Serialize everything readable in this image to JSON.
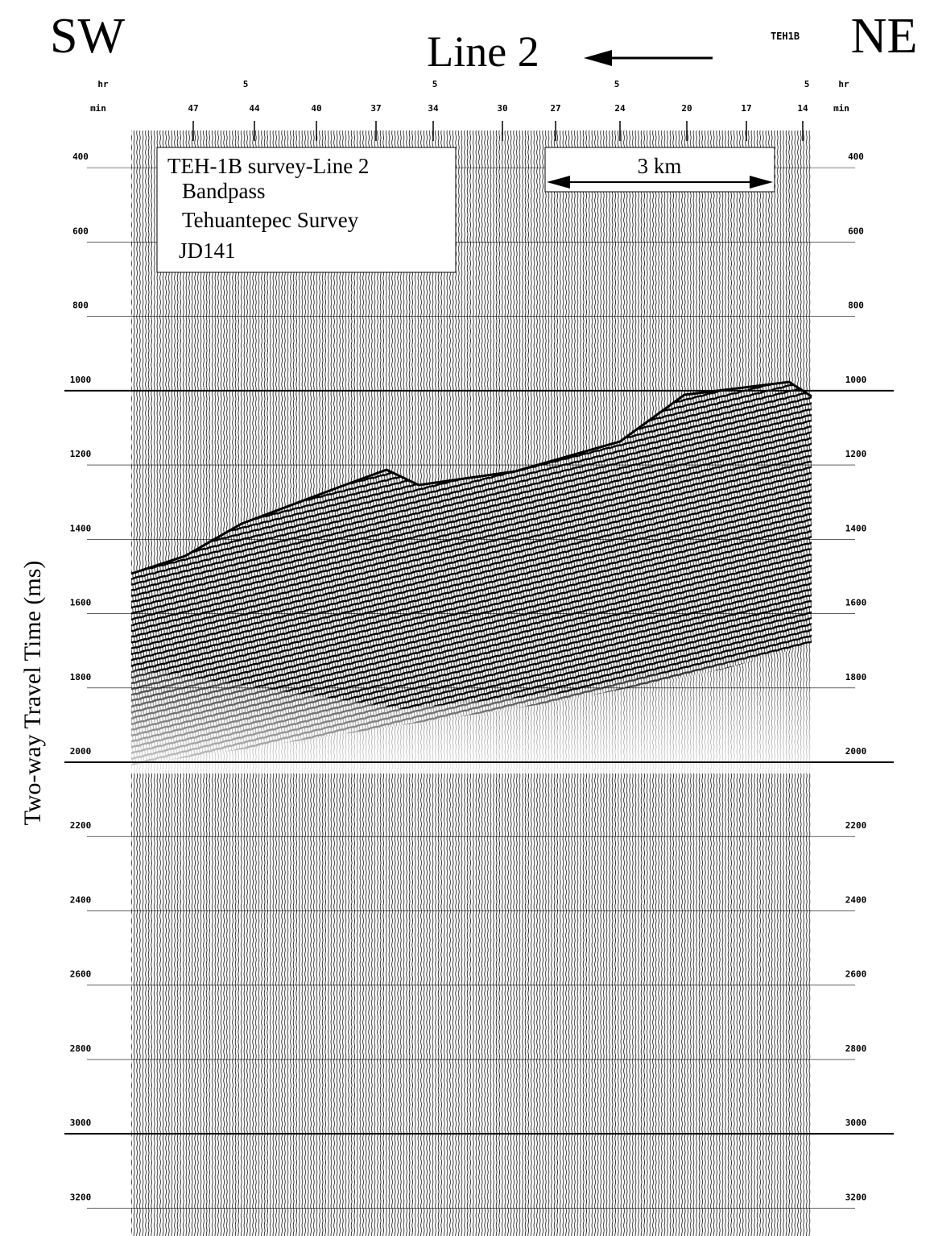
{
  "header": {
    "left": "SW",
    "title": "Line 2",
    "code": "TEH1B",
    "right": "NE"
  },
  "axis": {
    "ylabel": "Two-way Travel Time (ms)",
    "ylim": [
      300,
      3275
    ],
    "yticks": [
      400,
      600,
      800,
      1000,
      1200,
      1400,
      1600,
      1800,
      2000,
      2200,
      2400,
      2600,
      2800,
      3000,
      3200
    ],
    "major_lines": [
      1000,
      2000,
      3000
    ],
    "hr_label": "hr",
    "hr_ticks": [
      5,
      5,
      5,
      5
    ],
    "min_label": "min",
    "min_ticks": [
      47,
      44,
      40,
      37,
      34,
      30,
      27,
      24,
      20,
      17,
      14
    ]
  },
  "info_box": {
    "lines": [
      "TEH-1B survey-Line 2",
      "Bandpass",
      "Tehuantepec Survey",
      "JD141"
    ]
  },
  "scale_bar": {
    "label": "3 km"
  }
}
